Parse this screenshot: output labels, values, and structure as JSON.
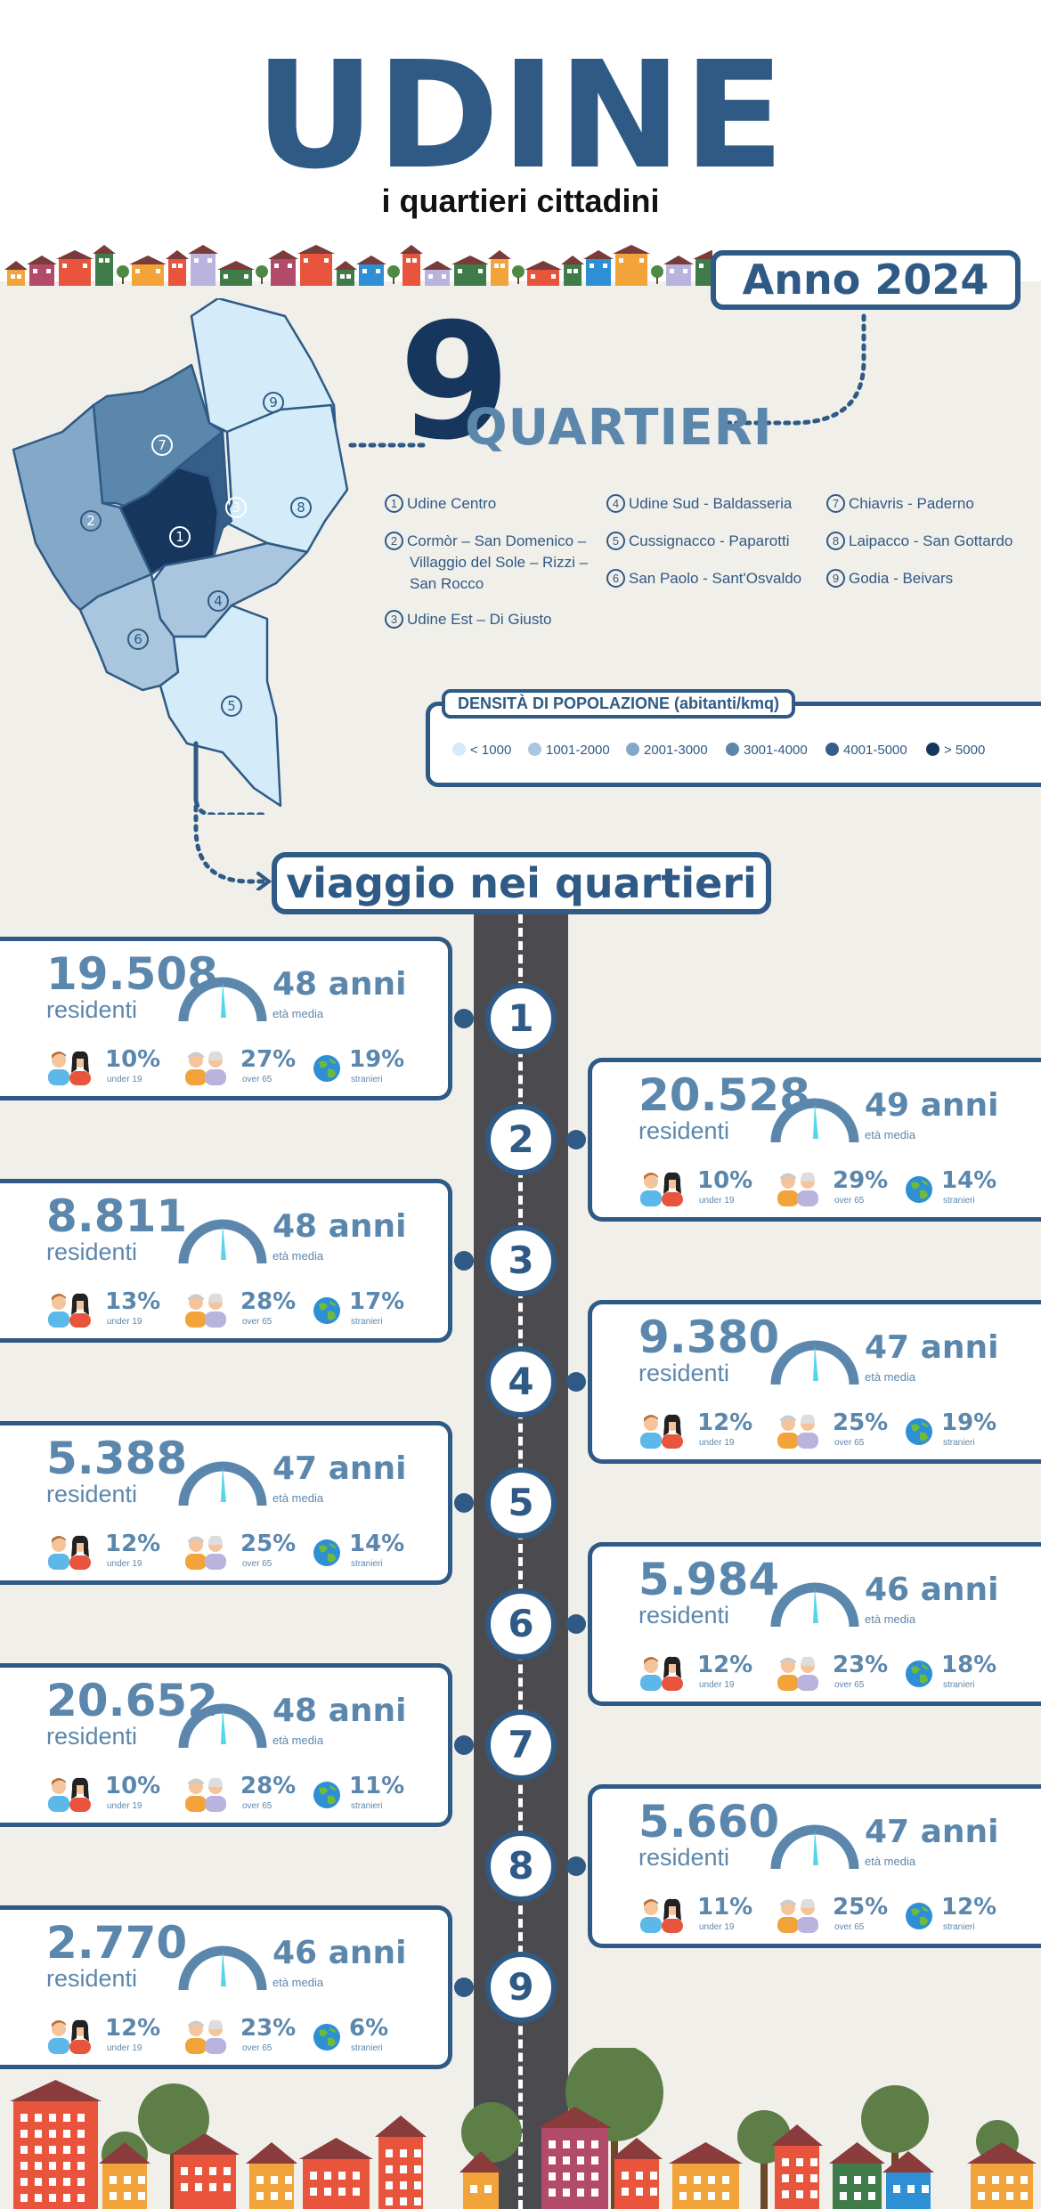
{
  "header": {
    "city": "UDINE",
    "subtitle": "i quartieri cittadini",
    "year": "Anno 2024",
    "count": "9",
    "count_label": "QUARTIERI"
  },
  "districts_legend": [
    {
      "num": "1",
      "name": "Udine Centro"
    },
    {
      "num": "2",
      "name": "Cormòr – San Domenico – Villaggio del Sole – Rizzi – San Rocco"
    },
    {
      "num": "3",
      "name": "Udine Est – Di Giusto"
    },
    {
      "num": "4",
      "name": "Udine Sud - Baldasseria"
    },
    {
      "num": "5",
      "name": "Cussignacco - Paparotti"
    },
    {
      "num": "6",
      "name": "San Paolo - Sant'Osvaldo"
    },
    {
      "num": "7",
      "name": "Chiavris - Paderno"
    },
    {
      "num": "8",
      "name": "Laipacco - San Gottardo"
    },
    {
      "num": "9",
      "name": "Godia - Beivars"
    }
  ],
  "density": {
    "title": "DENSITÀ DI POPOLAZIONE (abitanti/kmq)",
    "classes": [
      {
        "label": "< 1000",
        "color": "#d4ecf9"
      },
      {
        "label": "1001-2000",
        "color": "#a9c6de"
      },
      {
        "label": "2001-3000",
        "color": "#84a8c8"
      },
      {
        "label": "3001-4000",
        "color": "#5c87ad"
      },
      {
        "label": "4001-5000",
        "color": "#355f88"
      },
      {
        "label": "> 5000",
        "color": "#16365d"
      }
    ]
  },
  "journey_title": "viaggio nei quartieri",
  "labels": {
    "residents": "residenti",
    "age_sub": "età media",
    "under": "under 19",
    "over": "over 65",
    "foreign": "stranieri"
  },
  "neighborhoods": [
    {
      "num": "1",
      "residents": "19.508",
      "age": "48 anni",
      "under19": "10%",
      "over65": "27%",
      "foreign": "19%"
    },
    {
      "num": "2",
      "residents": "20.528",
      "age": "49 anni",
      "under19": "10%",
      "over65": "29%",
      "foreign": "14%"
    },
    {
      "num": "3",
      "residents": "8.811",
      "age": "48 anni",
      "under19": "13%",
      "over65": "28%",
      "foreign": "17%"
    },
    {
      "num": "4",
      "residents": "9.380",
      "age": "47 anni",
      "under19": "12%",
      "over65": "25%",
      "foreign": "19%"
    },
    {
      "num": "5",
      "residents": "5.388",
      "age": "47 anni",
      "under19": "12%",
      "over65": "25%",
      "foreign": "14%"
    },
    {
      "num": "6",
      "residents": "5.984",
      "age": "46 anni",
      "under19": "12%",
      "over65": "23%",
      "foreign": "18%"
    },
    {
      "num": "7",
      "residents": "20.652",
      "age": "48 anni",
      "under19": "10%",
      "over65": "28%",
      "foreign": "11%"
    },
    {
      "num": "8",
      "residents": "5.660",
      "age": "47 anni",
      "under19": "11%",
      "over65": "25%",
      "foreign": "12%"
    },
    {
      "num": "9",
      "residents": "2.770",
      "age": "46 anni",
      "under19": "12%",
      "over65": "23%",
      "foreign": "6%"
    }
  ]
}
